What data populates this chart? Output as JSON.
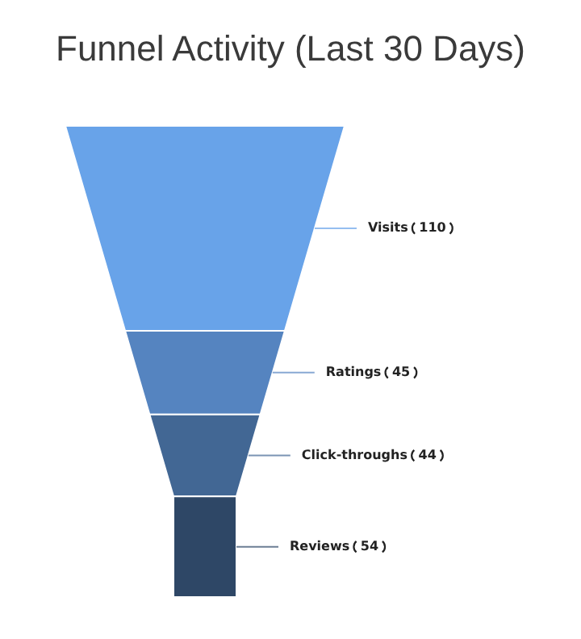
{
  "chart_data": {
    "type": "other",
    "title": "Funnel Activity (Last 30 Days)",
    "categories": [
      "Visits",
      "Ratings",
      "Click-throughs",
      "Reviews"
    ],
    "values": [
      110,
      45,
      44,
      54
    ],
    "colors": [
      "#68a3e9",
      "#5584c0",
      "#426794",
      "#2e4766"
    ],
    "data_labels": true
  }
}
